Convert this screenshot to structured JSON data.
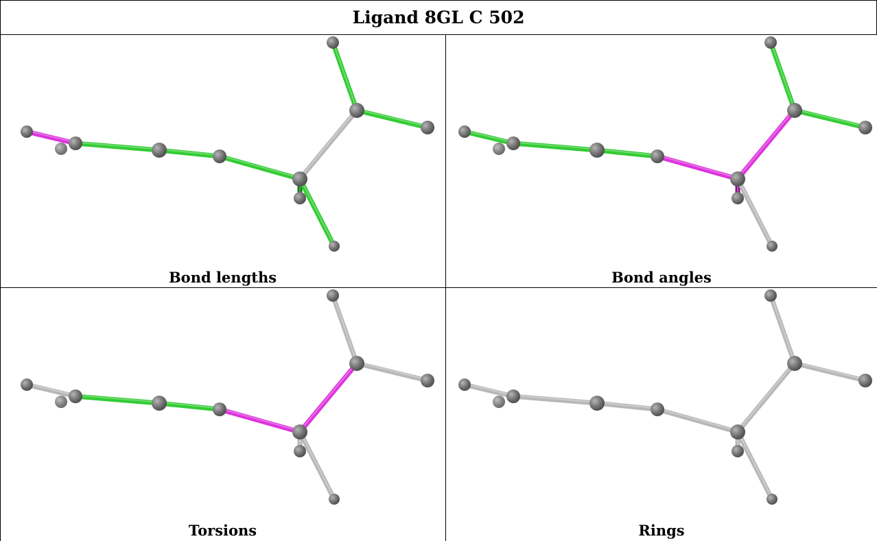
{
  "title": "Ligand 8GL C 502",
  "panels": [
    {
      "caption": "Bond lengths",
      "bonds": [
        {
          "from": 0,
          "to": 1,
          "color": "magenta"
        },
        {
          "from": 1,
          "to": 3,
          "color": "green"
        },
        {
          "from": 3,
          "to": 4,
          "color": "green"
        },
        {
          "from": 4,
          "to": 5,
          "color": "green"
        },
        {
          "from": 5,
          "to": 6,
          "color": "darkgreen"
        },
        {
          "from": 5,
          "to": 7,
          "color": "green"
        },
        {
          "from": 5,
          "to": 8,
          "color": "gray"
        },
        {
          "from": 8,
          "to": 9,
          "color": "green"
        },
        {
          "from": 8,
          "to": 10,
          "color": "green"
        }
      ]
    },
    {
      "caption": "Bond angles",
      "bonds": [
        {
          "from": 0,
          "to": 1,
          "color": "green"
        },
        {
          "from": 1,
          "to": 3,
          "color": "green"
        },
        {
          "from": 3,
          "to": 4,
          "color": "green"
        },
        {
          "from": 4,
          "to": 5,
          "color": "magenta"
        },
        {
          "from": 5,
          "to": 6,
          "color": "darkmagenta"
        },
        {
          "from": 5,
          "to": 7,
          "color": "gray"
        },
        {
          "from": 5,
          "to": 8,
          "color": "magenta"
        },
        {
          "from": 8,
          "to": 9,
          "color": "green"
        },
        {
          "from": 8,
          "to": 10,
          "color": "green"
        }
      ]
    },
    {
      "caption": "Torsions",
      "bonds": [
        {
          "from": 0,
          "to": 1,
          "color": "gray"
        },
        {
          "from": 1,
          "to": 3,
          "color": "green"
        },
        {
          "from": 3,
          "to": 4,
          "color": "green"
        },
        {
          "from": 4,
          "to": 5,
          "color": "magenta"
        },
        {
          "from": 5,
          "to": 6,
          "color": "gray"
        },
        {
          "from": 5,
          "to": 7,
          "color": "gray"
        },
        {
          "from": 5,
          "to": 8,
          "color": "magenta"
        },
        {
          "from": 8,
          "to": 9,
          "color": "gray"
        },
        {
          "from": 8,
          "to": 10,
          "color": "gray"
        }
      ]
    },
    {
      "caption": "Rings",
      "bonds": [
        {
          "from": 0,
          "to": 1,
          "color": "gray"
        },
        {
          "from": 1,
          "to": 3,
          "color": "gray"
        },
        {
          "from": 3,
          "to": 4,
          "color": "gray"
        },
        {
          "from": 4,
          "to": 5,
          "color": "gray"
        },
        {
          "from": 5,
          "to": 6,
          "color": "gray"
        },
        {
          "from": 5,
          "to": 7,
          "color": "gray"
        },
        {
          "from": 5,
          "to": 8,
          "color": "gray"
        },
        {
          "from": 8,
          "to": 9,
          "color": "gray"
        },
        {
          "from": 8,
          "to": 10,
          "color": "gray"
        }
      ]
    }
  ],
  "colors": {
    "green": "#33cc33",
    "darkgreen": "#117711",
    "magenta": "#dd33dd",
    "darkmagenta": "#881188",
    "gray": "#b8b8b8",
    "atom": "#707070",
    "atom_far": "#909090"
  }
}
